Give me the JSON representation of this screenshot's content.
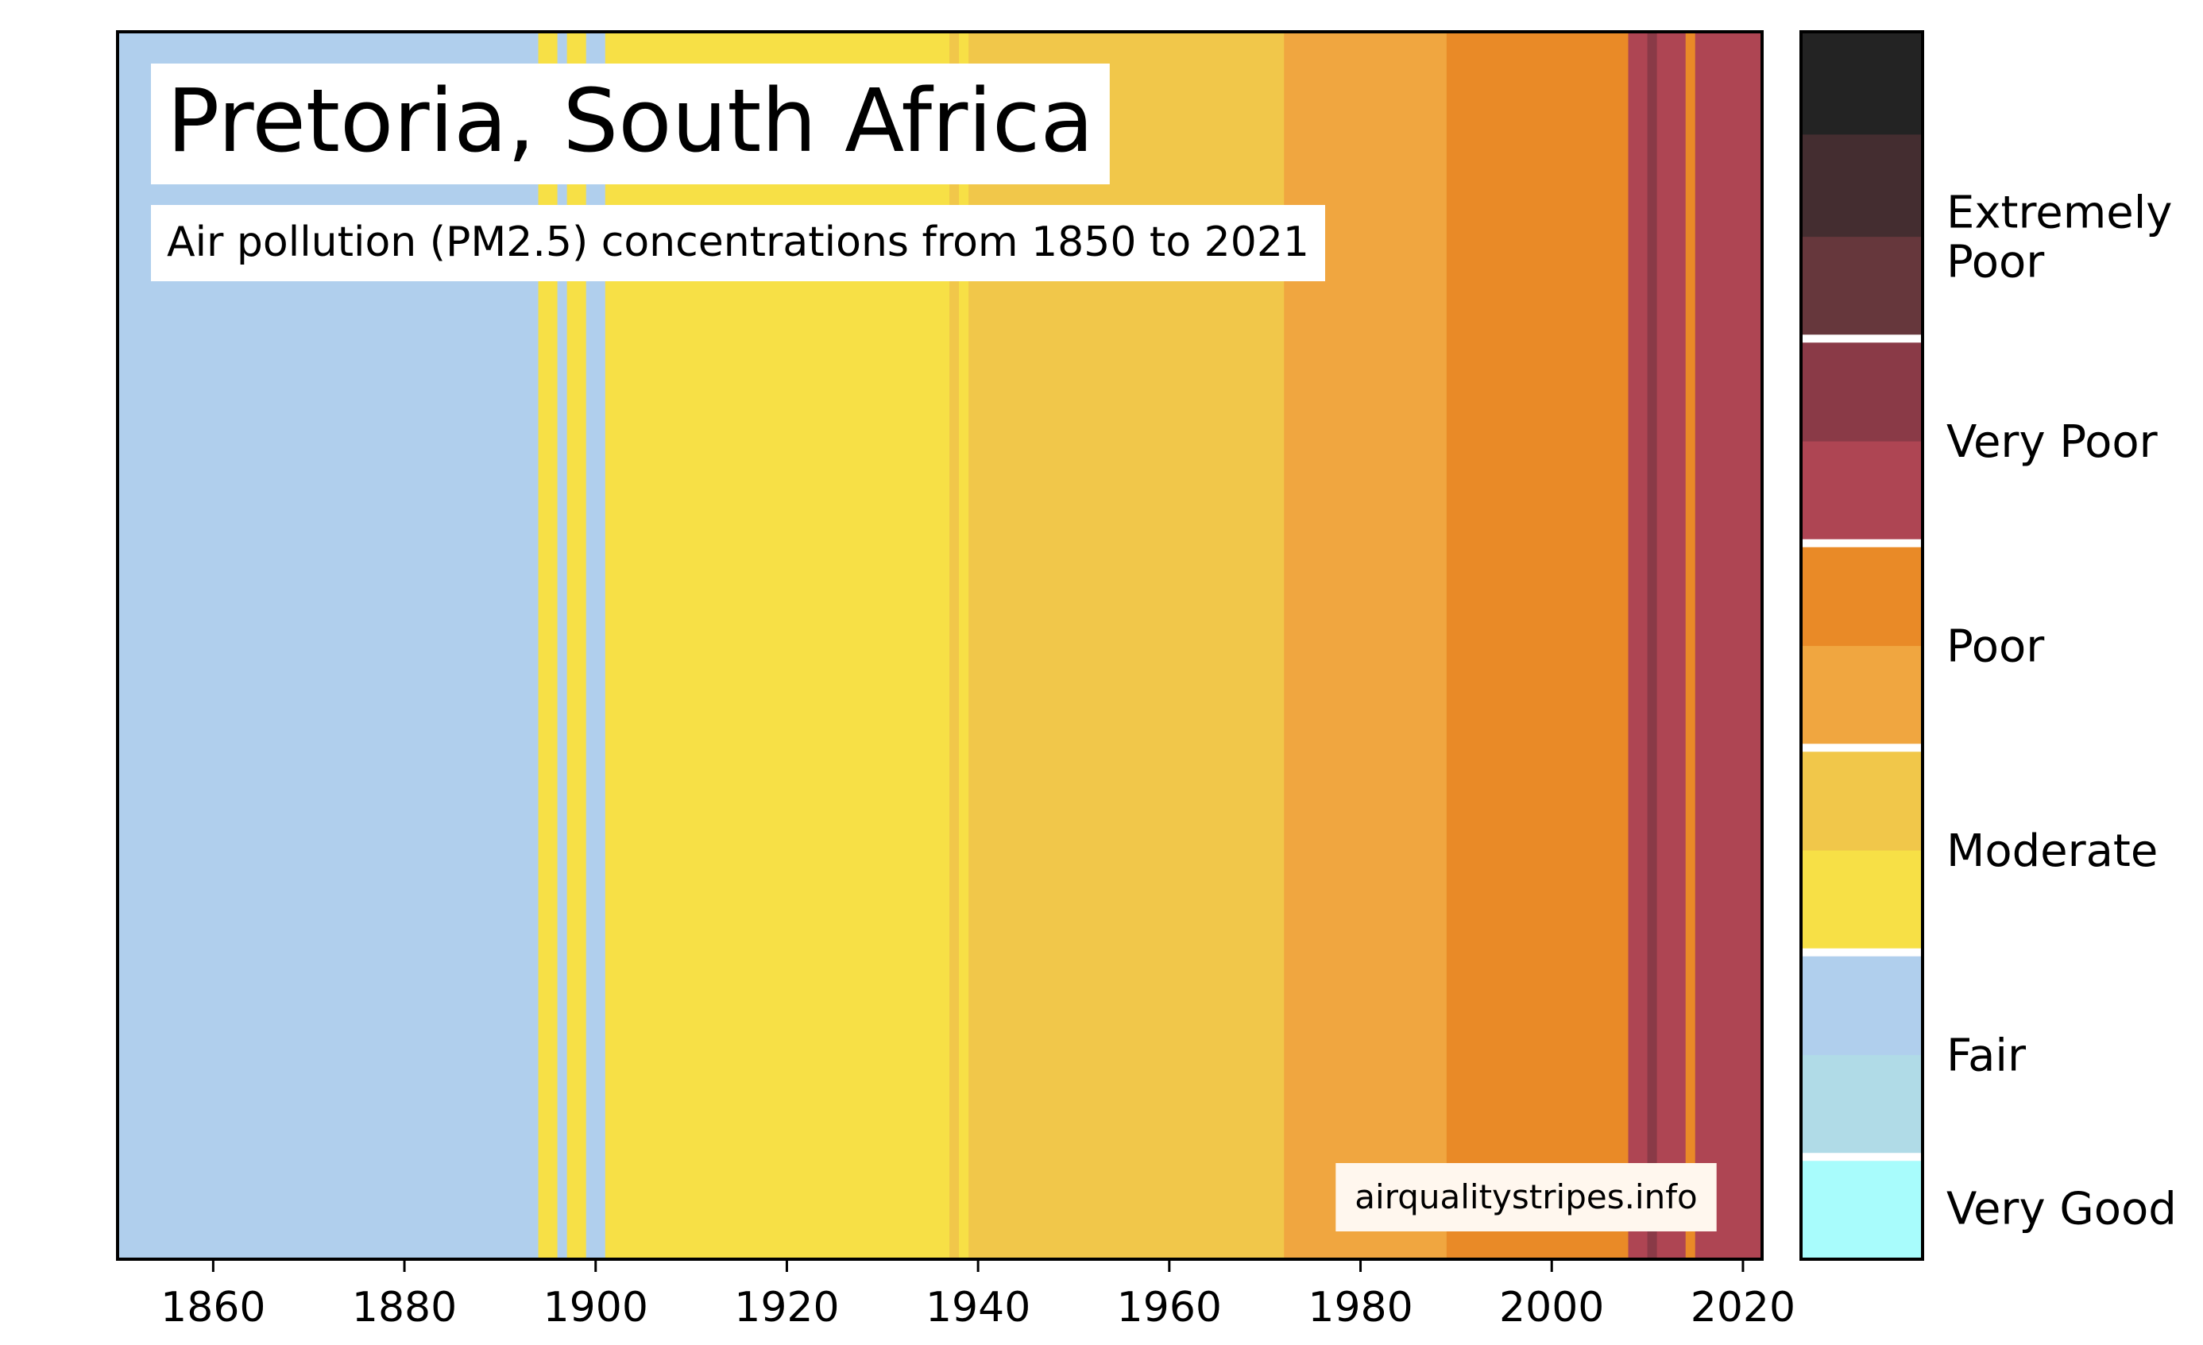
{
  "chart_data": {
    "type": "heatmap",
    "title": "Pretoria, South Africa",
    "subtitle": "Air pollution (PM2.5) concentrations from 1850 to 2021",
    "credit": "airqualitystripes.info",
    "xlim": [
      1850,
      2022
    ],
    "x_ticks": [
      "1860",
      "1880",
      "1900",
      "1920",
      "1940",
      "1960",
      "1980",
      "2000",
      "2020"
    ],
    "x_tick_values": [
      1860,
      1880,
      1900,
      1920,
      1940,
      1960,
      1980,
      2000,
      2020
    ],
    "palette": {
      "very_good": "#a8fcfc",
      "fair_light": "#b0dbe7",
      "fair": "#b0cfed",
      "moderate_yellow": "#f7e046",
      "moderate_gold": "#f1c74a",
      "poor_light": "#f0a640",
      "poor": "#e98a27",
      "very_poor": "#ae4553",
      "very_poor_dark": "#8a3a47",
      "extremely_poor_light": "#66373c",
      "extremely_poor": "#442d30",
      "extremely_poor_dark": "#232323"
    },
    "stripes": [
      {
        "start": 1850,
        "end": 1894,
        "color": "#b0cfed"
      },
      {
        "start": 1894,
        "end": 1896,
        "color": "#f7e046"
      },
      {
        "start": 1896,
        "end": 1897,
        "color": "#b0cfed"
      },
      {
        "start": 1897,
        "end": 1898,
        "color": "#f7e046"
      },
      {
        "start": 1898,
        "end": 1899,
        "color": "#f7e046"
      },
      {
        "start": 1899,
        "end": 1901,
        "color": "#b0cfed"
      },
      {
        "start": 1901,
        "end": 1937,
        "color": "#f7e046"
      },
      {
        "start": 1937,
        "end": 1938,
        "color": "#f1c74a"
      },
      {
        "start": 1938,
        "end": 1939,
        "color": "#f7e046"
      },
      {
        "start": 1939,
        "end": 1972,
        "color": "#f1c74a"
      },
      {
        "start": 1972,
        "end": 1989,
        "color": "#f0a640"
      },
      {
        "start": 1989,
        "end": 2008,
        "color": "#e98a27"
      },
      {
        "start": 2008,
        "end": 2010,
        "color": "#ae4553"
      },
      {
        "start": 2010,
        "end": 2011,
        "color": "#8a3a47"
      },
      {
        "start": 2011,
        "end": 2014,
        "color": "#ae4553"
      },
      {
        "start": 2014,
        "end": 2015,
        "color": "#e98a27"
      },
      {
        "start": 2015,
        "end": 2022,
        "color": "#ae4553"
      }
    ],
    "colorbar": {
      "segments": [
        "#a8fcfc",
        "#b0dbe7",
        "#b0cfed",
        "#f7e046",
        "#f1c74a",
        "#f0a640",
        "#e98a27",
        "#ae4553",
        "#8a3a47",
        "#66373c",
        "#442d30",
        "#232323"
      ],
      "labels": [
        {
          "lines": [
            "Very Good"
          ],
          "segments": [
            0
          ]
        },
        {
          "lines": [
            "Fair"
          ],
          "segments": [
            1,
            2
          ]
        },
        {
          "lines": [
            "Moderate"
          ],
          "segments": [
            3,
            4
          ]
        },
        {
          "lines": [
            "Poor"
          ],
          "segments": [
            5,
            6
          ]
        },
        {
          "lines": [
            "Very Poor"
          ],
          "segments": [
            7,
            8
          ]
        },
        {
          "lines": [
            "Extremely",
            "Poor"
          ],
          "segments": [
            9,
            10
          ]
        }
      ]
    }
  }
}
